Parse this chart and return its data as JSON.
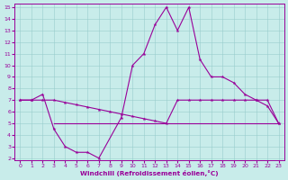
{
  "background": "#c8ecea",
  "line_color": "#990099",
  "grid_color": "#99cccc",
  "xlabel": "Windchill (Refroidissement éolien,°C)",
  "ylim_min": 2,
  "ylim_max": 15,
  "xlim_min": 0,
  "xlim_max": 23,
  "yticks": [
    2,
    3,
    4,
    5,
    6,
    7,
    8,
    9,
    10,
    11,
    12,
    13,
    14,
    15
  ],
  "xticks": [
    0,
    1,
    2,
    3,
    4,
    5,
    6,
    7,
    8,
    9,
    10,
    11,
    12,
    13,
    14,
    15,
    16,
    17,
    18,
    19,
    20,
    21,
    22,
    23
  ],
  "curve_x": [
    0,
    1,
    2,
    3,
    4,
    5,
    6,
    7,
    9,
    10,
    11,
    12,
    13,
    14,
    15,
    16,
    17,
    18,
    19,
    20,
    21,
    22,
    23
  ],
  "curve_y": [
    7.0,
    7.0,
    7.5,
    4.5,
    3.0,
    2.5,
    2.5,
    2.0,
    5.5,
    10.0,
    11.0,
    13.5,
    15.0,
    13.0,
    15.0,
    10.5,
    9.0,
    9.0,
    8.5,
    7.5,
    7.0,
    6.5,
    5.0
  ],
  "upper_x": [
    0,
    1,
    2,
    3,
    4,
    5,
    6,
    7,
    8,
    9,
    10,
    11,
    12,
    13,
    14,
    15,
    16,
    17,
    18,
    19,
    20,
    21,
    22,
    23
  ],
  "upper_y": [
    7.0,
    7.0,
    7.0,
    7.0,
    6.8,
    6.6,
    6.4,
    6.2,
    6.0,
    5.8,
    5.6,
    5.4,
    5.2,
    5.0,
    7.0,
    7.0,
    7.0,
    7.0,
    7.0,
    7.0,
    7.0,
    7.0,
    7.0,
    5.0
  ],
  "lower_x": [
    3,
    4,
    5,
    6,
    7,
    8,
    9,
    10,
    11,
    12,
    13,
    14,
    15,
    16,
    17,
    18,
    19,
    20,
    21,
    22,
    23
  ],
  "lower_y": [
    5.0,
    5.0,
    5.0,
    5.0,
    5.0,
    5.0,
    5.0,
    5.0,
    5.0,
    5.0,
    5.0,
    5.0,
    5.0,
    5.0,
    5.0,
    5.0,
    5.0,
    5.0,
    5.0,
    5.0,
    5.0
  ]
}
